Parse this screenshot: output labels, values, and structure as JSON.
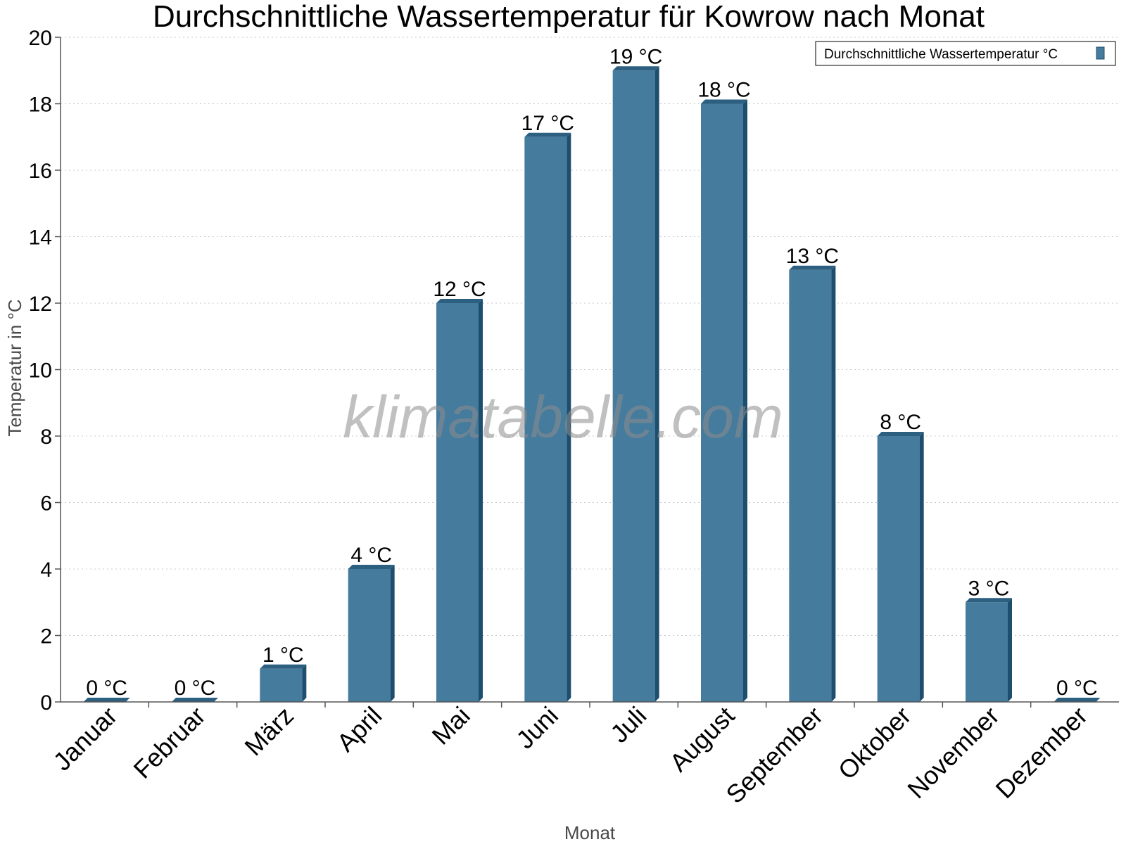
{
  "chart_data": {
    "type": "bar",
    "title": "Durchschnittliche Wassertemperatur für Kowrow nach Monat",
    "xlabel": "Monat",
    "ylabel": "Temperatur in °C",
    "categories": [
      "Januar",
      "Februar",
      "März",
      "April",
      "Mai",
      "Juni",
      "Juli",
      "August",
      "September",
      "Oktober",
      "November",
      "Dezember"
    ],
    "series": [
      {
        "name": "Durchschnittliche Wassertemperatur °C",
        "values": [
          0,
          0,
          1,
          4,
          12,
          17,
          19,
          18,
          13,
          8,
          3,
          0
        ],
        "data_labels": [
          "0 °C",
          "0 °C",
          "1 °C",
          "4 °C",
          "12 °C",
          "17 °C",
          "19 °C",
          "18 °C",
          "13 °C",
          "8 °C",
          "3 °C",
          "0 °C"
        ]
      }
    ],
    "ylim": [
      0,
      20
    ],
    "yticks": [
      "0",
      "2",
      "4",
      "6",
      "8",
      "10",
      "12",
      "14",
      "16",
      "18",
      "20"
    ],
    "grid": true,
    "legend_position": "top-right",
    "colors": {
      "bar_front": "#457b9d",
      "bar_side": "#1d4e6e",
      "bar_top": "#2d5f80"
    },
    "watermark": "klimatabelle.com"
  }
}
